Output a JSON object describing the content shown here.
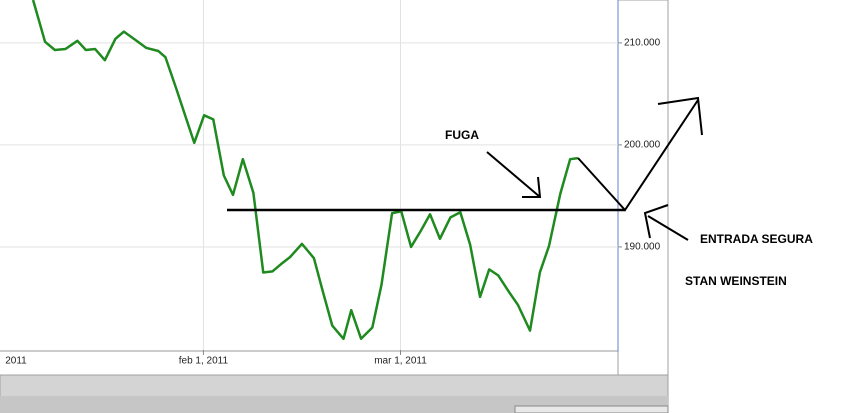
{
  "chart_data": {
    "type": "line",
    "x": [
      6.8,
      8.5,
      9.9,
      11.4,
      13.1,
      14.3,
      15.6,
      17.0,
      18.5,
      19.7,
      21.3,
      22.9,
      24.6,
      25.6,
      27.1,
      29.7,
      31.1,
      32.4,
      33.9,
      35.2,
      36.6,
      38.1,
      39.5,
      40.8,
      42.0,
      43.3,
      45.0,
      46.7,
      47.9,
      49.3,
      50.9,
      52.0,
      53.4,
      55.0,
      56.3,
      57.8,
      59.1,
      60.5,
      61.9,
      63.2,
      64.6,
      66.1,
      67.5,
      68.9,
      70.3,
      71.6,
      72.9,
      74.4,
      75.7,
      77.4,
      78.8,
      80.1,
      81.7,
      83.1,
      84.2
    ],
    "series": [
      {
        "color": "#1f8a1f",
        "values": [
          214.2,
          210.1,
          209.3,
          209.4,
          210.2,
          209.3,
          209.4,
          208.3,
          210.4,
          211.1,
          210.3,
          209.5,
          209.2,
          208.6,
          205.6,
          200.2,
          202.9,
          202.5,
          197.0,
          195.1,
          198.6,
          195.3,
          187.5,
          187.6,
          188.3,
          189.0,
          190.3,
          188.9,
          185.8,
          182.3,
          181.0,
          183.8,
          181.0,
          182.1,
          186.3,
          193.3,
          193.5,
          190.0,
          191.6,
          193.2,
          190.8,
          192.9,
          193.4,
          190.2,
          185.1,
          187.8,
          187.2,
          185.6,
          184.3,
          181.8,
          187.5,
          190.1,
          195.2,
          198.6,
          198.7
        ]
      }
    ],
    "xlim": [
      2.1,
      89.9
    ],
    "xticks": [
      {
        "value": 0,
        "label": "2011"
      },
      {
        "value": 31,
        "label": "feb 1, 2011"
      },
      {
        "value": 59,
        "label": "mar 1, 2011"
      }
    ],
    "ylim": [
      179.9,
      214.2
    ],
    "yticks": [
      {
        "value": 190,
        "label": "190.000"
      },
      {
        "value": 200,
        "label": "200.000"
      },
      {
        "value": 210,
        "label": "210.000"
      }
    ],
    "grid": true,
    "annotations": [
      "FUGA",
      "ENTRADA SEGURA",
      "STAN WEINSTEIN"
    ]
  }
}
